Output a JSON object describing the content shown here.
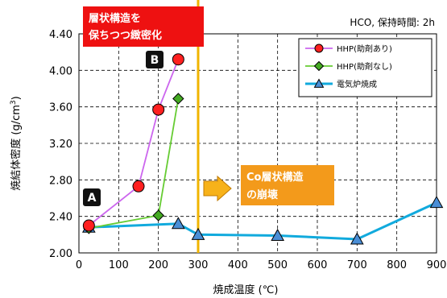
{
  "chart_data": {
    "type": "line",
    "xlabel": "焼成温度 (℃)",
    "ylabel_main": "焼結体密度 (g/cm",
    "ylabel_sup": "3",
    "ylabel_end": ")",
    "xlim": [
      0,
      900
    ],
    "ylim": [
      2.0,
      4.4
    ],
    "x_ticks": [
      "0",
      "100",
      "200",
      "300",
      "400",
      "500",
      "600",
      "700",
      "800",
      "900"
    ],
    "y_ticks": [
      "2.00",
      "2.40",
      "2.80",
      "3.20",
      "3.60",
      "4.00",
      "4.40"
    ],
    "x_tick_values": [
      0,
      100,
      200,
      300,
      400,
      500,
      600,
      700,
      800,
      900
    ],
    "y_tick_values": [
      2.0,
      2.4,
      2.8,
      3.2,
      3.6,
      4.0,
      4.4
    ],
    "grid": "dashed",
    "legend_position": "top-right",
    "series": [
      {
        "name": "HHP(助剤あり)",
        "color": "#cc66ee",
        "marker": "circle",
        "marker_fill": "#ff2020",
        "points": [
          [
            25,
            2.3
          ],
          [
            150,
            2.73
          ],
          [
            200,
            3.57
          ],
          [
            250,
            4.12
          ]
        ]
      },
      {
        "name": "HHP(助剤なし)",
        "color": "#66cc33",
        "marker": "diamond",
        "marker_fill": "#44aa22",
        "points": [
          [
            25,
            2.27
          ],
          [
            200,
            2.41
          ],
          [
            250,
            3.69
          ]
        ]
      },
      {
        "name": "電気炉焼成",
        "color": "#11aadd",
        "marker": "triangle",
        "marker_fill": "#4a8ed6",
        "points": [
          [
            25,
            2.28
          ],
          [
            250,
            2.32
          ],
          [
            300,
            2.2
          ],
          [
            500,
            2.19
          ],
          [
            700,
            2.15
          ],
          [
            900,
            2.55
          ]
        ]
      }
    ],
    "vline": {
      "x": 300,
      "color": "#f0b400"
    },
    "annotations": {
      "condition": "HCO, 保持時間: 2h",
      "top_callout": [
        "層状構造を",
        "保ちつつ緻密化"
      ],
      "right_callout": [
        "Co層状構造",
        "の崩壊"
      ],
      "label_a": "A",
      "label_b": "B"
    }
  }
}
